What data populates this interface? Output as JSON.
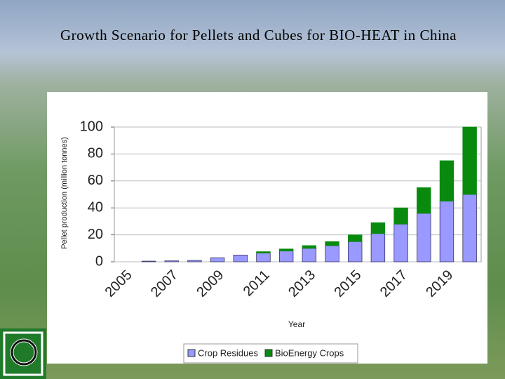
{
  "title": "Growth Scenario for Pellets and Cubes for BIO-HEAT in China",
  "chart_data": {
    "type": "bar",
    "stacked": true,
    "x_label": "Year",
    "y_label": "Pellet production (million tonnes)",
    "categories": [
      "2005",
      null,
      "2007",
      null,
      "2009",
      null,
      "2011",
      null,
      "2013",
      null,
      "2015",
      null,
      "2017",
      null,
      "2019",
      null
    ],
    "series": [
      {
        "name": "Crop Residues",
        "color": "#9999ff",
        "values": [
          0,
          0.5,
          0.7,
          1,
          3,
          5,
          6.5,
          8,
          10,
          12,
          15,
          21,
          28,
          36,
          45,
          50
        ]
      },
      {
        "name": "BioEnergy Crops",
        "color": "#098a0f",
        "values": [
          0,
          0,
          0,
          0,
          0,
          0,
          1,
          1.5,
          2,
          3,
          5,
          8,
          12,
          19,
          30,
          50
        ]
      }
    ],
    "ylim": [
      0,
      100
    ],
    "yticks": [
      0,
      20,
      40,
      60,
      80,
      100
    ],
    "grid": true,
    "legend": "bottom"
  }
}
